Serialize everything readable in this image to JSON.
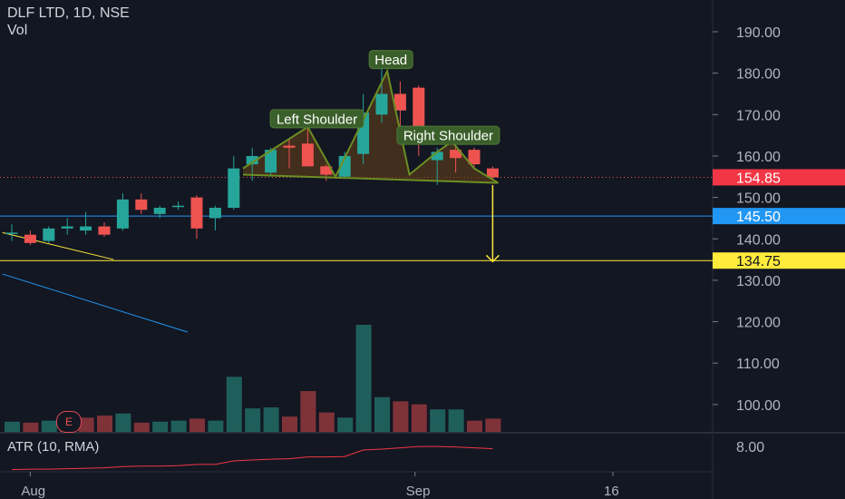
{
  "header": {
    "symbol_line": "DLF LTD, 1D, NSE",
    "volume_label": "Vol"
  },
  "indicator": {
    "title": "ATR (10, RMA)",
    "axis_label": "8.00"
  },
  "earnings_marker": "E",
  "colors": {
    "background": "#131722",
    "up": "#26a69a",
    "down": "#ef5350",
    "pattern_line": "#6b8e23",
    "pattern_fill": "#5a3a1a",
    "target_line": "#ffeb3b",
    "blue_line": "#2196f3",
    "atr_line": "#f23645"
  },
  "chart_data": {
    "type": "candlestick",
    "title": "DLF LTD, 1D, NSE",
    "x_tick_labels": [
      "Aug",
      "Sep",
      "16"
    ],
    "y_ticks": [
      "190.00",
      "180.00",
      "170.00",
      "160.00",
      "150.00",
      "140.00",
      "130.00",
      "120.00",
      "110.00",
      "100.00"
    ],
    "ylim": [
      90,
      197
    ],
    "candles": [
      {
        "o": 141.5,
        "h": 143.5,
        "l": 139.5,
        "c": 141.5
      },
      {
        "o": 141.0,
        "h": 142.0,
        "l": 138.5,
        "c": 139.0
      },
      {
        "o": 139.5,
        "h": 143.0,
        "l": 139.0,
        "c": 142.5
      },
      {
        "o": 142.5,
        "h": 145.0,
        "l": 141.0,
        "c": 143.0
      },
      {
        "o": 142.0,
        "h": 146.5,
        "l": 141.0,
        "c": 143.0
      },
      {
        "o": 143.0,
        "h": 144.0,
        "l": 140.5,
        "c": 141.0
      },
      {
        "o": 142.5,
        "h": 151.0,
        "l": 142.0,
        "c": 149.5
      },
      {
        "o": 149.5,
        "h": 151.0,
        "l": 146.0,
        "c": 147.0
      },
      {
        "o": 146.0,
        "h": 148.0,
        "l": 145.0,
        "c": 147.5
      },
      {
        "o": 148.0,
        "h": 149.0,
        "l": 147.0,
        "c": 148.0
      },
      {
        "o": 150.0,
        "h": 150.5,
        "l": 140.0,
        "c": 142.5
      },
      {
        "o": 145.0,
        "h": 148.0,
        "l": 142.0,
        "c": 147.5
      },
      {
        "o": 147.5,
        "h": 160.0,
        "l": 147.0,
        "c": 157.0
      },
      {
        "o": 158.0,
        "h": 162.0,
        "l": 154.0,
        "c": 160.0
      },
      {
        "o": 156.0,
        "h": 162.0,
        "l": 155.0,
        "c": 161.5
      },
      {
        "o": 162.5,
        "h": 164.0,
        "l": 157.0,
        "c": 162.0
      },
      {
        "o": 163.0,
        "h": 167.0,
        "l": 158.0,
        "c": 157.5
      },
      {
        "o": 157.5,
        "h": 158.0,
        "l": 154.0,
        "c": 155.5
      },
      {
        "o": 155.0,
        "h": 161.0,
        "l": 154.5,
        "c": 160.0
      },
      {
        "o": 160.5,
        "h": 175.0,
        "l": 158.0,
        "c": 170.5
      },
      {
        "o": 170.0,
        "h": 181.0,
        "l": 168.0,
        "c": 175.0
      },
      {
        "o": 175.0,
        "h": 178.0,
        "l": 167.0,
        "c": 171.0
      },
      {
        "o": 176.5,
        "h": 177.0,
        "l": 160.0,
        "c": 164.5
      },
      {
        "o": 159.0,
        "h": 162.0,
        "l": 153.0,
        "c": 161.0
      },
      {
        "o": 161.5,
        "h": 163.0,
        "l": 156.0,
        "c": 159.5
      },
      {
        "o": 161.5,
        "h": 162.0,
        "l": 157.0,
        "c": 158.0
      },
      {
        "o": 157.0,
        "h": 157.5,
        "l": 154.0,
        "c": 154.85
      }
    ],
    "volume": [
      {
        "v": 10,
        "up": true
      },
      {
        "v": 9,
        "up": false
      },
      {
        "v": 11,
        "up": true
      },
      {
        "v": 13,
        "up": false
      },
      {
        "v": 14,
        "up": false
      },
      {
        "v": 16,
        "up": false
      },
      {
        "v": 18,
        "up": true
      },
      {
        "v": 9,
        "up": false
      },
      {
        "v": 10,
        "up": true
      },
      {
        "v": 11,
        "up": true
      },
      {
        "v": 13,
        "up": false
      },
      {
        "v": 11,
        "up": true
      },
      {
        "v": 54,
        "up": true
      },
      {
        "v": 23,
        "up": true
      },
      {
        "v": 24,
        "up": true
      },
      {
        "v": 15,
        "up": false
      },
      {
        "v": 40,
        "up": false
      },
      {
        "v": 19,
        "up": false
      },
      {
        "v": 14,
        "up": true
      },
      {
        "v": 105,
        "up": true
      },
      {
        "v": 34,
        "up": true
      },
      {
        "v": 30,
        "up": false
      },
      {
        "v": 27,
        "up": false
      },
      {
        "v": 22,
        "up": true
      },
      {
        "v": 22,
        "up": true
      },
      {
        "v": 11,
        "up": false
      },
      {
        "v": 13,
        "up": false
      }
    ],
    "price_tags": [
      {
        "label": "154.85",
        "value": 154.85,
        "bg": "#f23645",
        "fg": "#ffffff"
      },
      {
        "label": "145.50",
        "value": 145.5,
        "bg": "#2196f3",
        "fg": "#ffffff"
      },
      {
        "label": "134.75",
        "value": 134.75,
        "bg": "#ffeb3b",
        "fg": "#131722"
      }
    ],
    "horizontal_lines": [
      {
        "value": 145.5,
        "color": "#2196f3"
      },
      {
        "value": 134.75,
        "color": "#ffeb3b"
      }
    ],
    "pattern": {
      "points": [
        {
          "i": 12.5,
          "p": 157.0
        },
        {
          "i": 16.0,
          "p": 167.0
        },
        {
          "i": 17.5,
          "p": 155.0
        },
        {
          "i": 20.3,
          "p": 180.5
        },
        {
          "i": 21.5,
          "p": 155.5
        },
        {
          "i": 23.0,
          "p": 161.0
        },
        {
          "i": 23.8,
          "p": 163.5
        },
        {
          "i": 25.0,
          "p": 157.0
        },
        {
          "i": 26.3,
          "p": 153.5
        }
      ],
      "neckline_start": {
        "i": 12.5,
        "p": 155.5
      },
      "neckline_end": {
        "i": 26.3,
        "p": 153.5
      }
    },
    "annotations": [
      {
        "label": "Head",
        "i": 20.5,
        "p": 183.3,
        "w": 96
      },
      {
        "label": "Left Shoulder",
        "i": 16.5,
        "p": 169.0,
        "w": 206
      },
      {
        "label": "Right Shoulder",
        "i": 23.6,
        "p": 165.0,
        "w": 226
      }
    ],
    "target_arrow": {
      "i": 26.0,
      "from": 153.0,
      "to": 134.5
    },
    "trend_lines": [
      {
        "from": {
          "i": -0.5,
          "p": 141.5
        },
        "to": {
          "i": 5.5,
          "p": 135.0
        },
        "color": "#ffeb3b"
      },
      {
        "from": {
          "i": -0.5,
          "p": 131.5
        },
        "to": {
          "i": 9.5,
          "p": 117.5
        },
        "color": "#2196f3"
      }
    ],
    "atr_series": [
      3.5,
      3.6,
      3.6,
      3.7,
      3.8,
      3.9,
      4.2,
      4.3,
      4.3,
      4.4,
      4.7,
      4.7,
      5.5,
      5.7,
      5.9,
      6.0,
      6.4,
      6.4,
      6.5,
      8.0,
      8.2,
      8.5,
      8.8,
      8.8,
      8.7,
      8.5,
      8.3
    ]
  }
}
